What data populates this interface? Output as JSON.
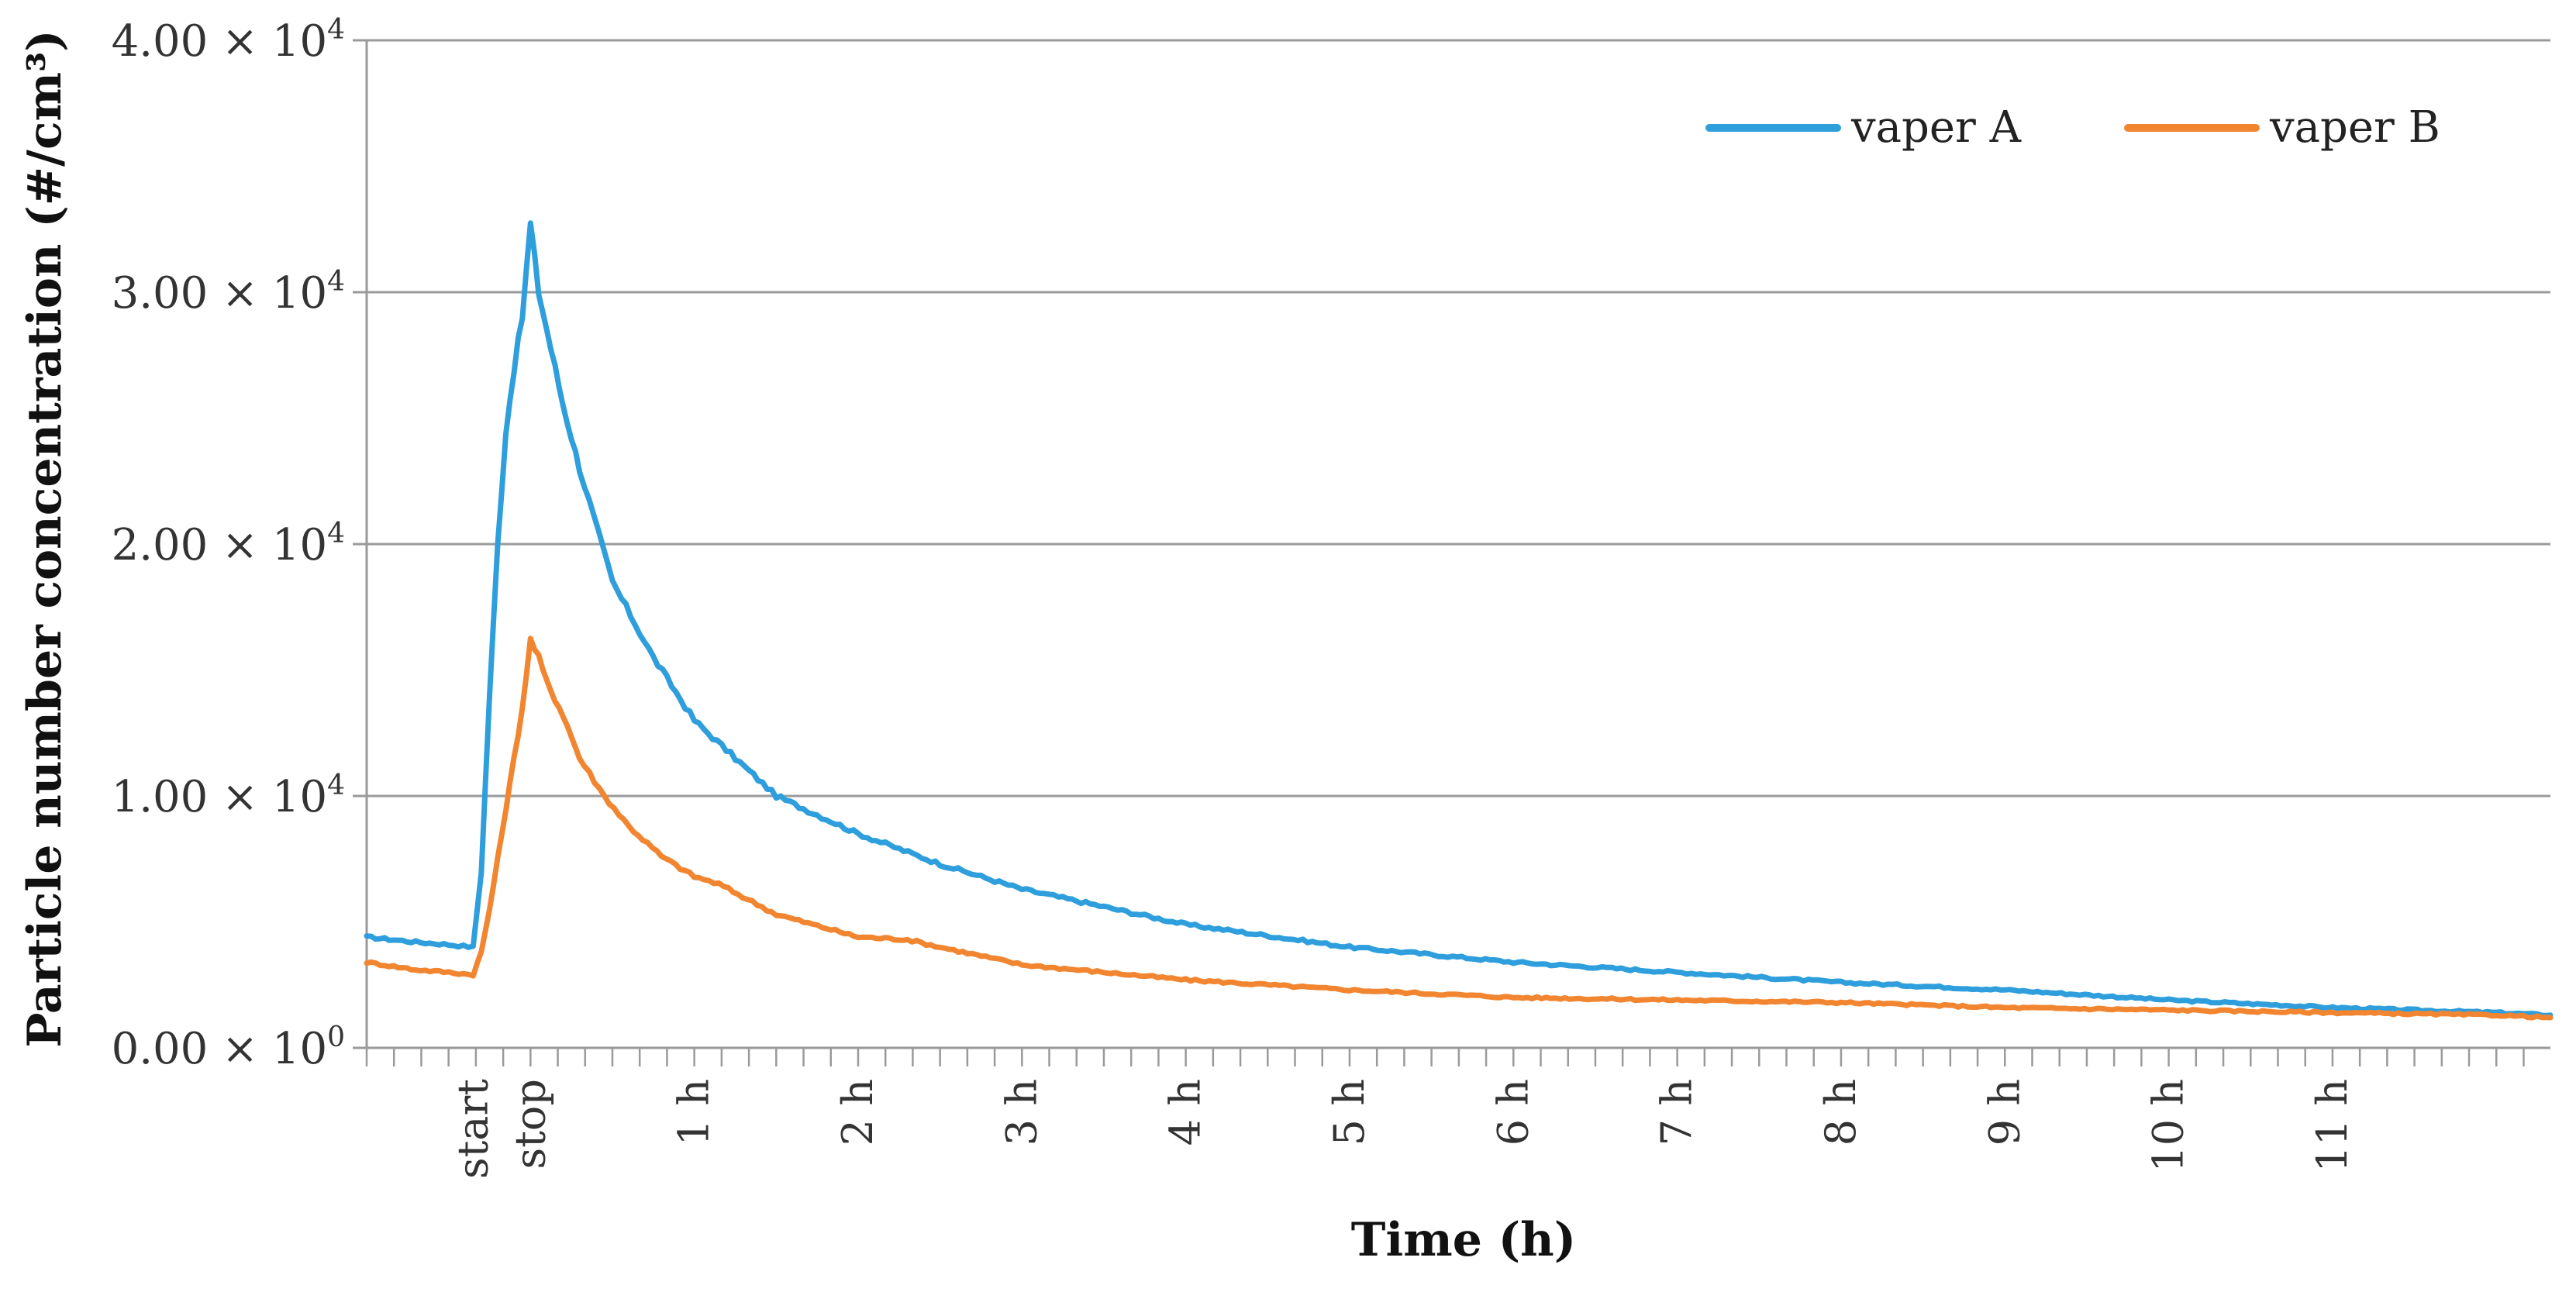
{
  "chart_data": {
    "type": "line",
    "title": "",
    "xlabel": "Time (h)",
    "ylabel": "Particle number concentration (#/cm³)",
    "ylim": [
      0,
      40000
    ],
    "xlim": [
      -1.0,
      12.33
    ],
    "grid": "horizontal",
    "legend_position": "top-right",
    "yticks": [
      {
        "value": 0,
        "mant": "0.00",
        "exp": "0"
      },
      {
        "value": 10000,
        "mant": "1.00",
        "exp": "4"
      },
      {
        "value": 20000,
        "mant": "2.00",
        "exp": "4"
      },
      {
        "value": 30000,
        "mant": "3.00",
        "exp": "4"
      },
      {
        "value": 40000,
        "mant": "4.00",
        "exp": "4"
      }
    ],
    "xticks": [
      {
        "value": -0.35,
        "label": "start"
      },
      {
        "value": 0.0,
        "label": "stop"
      },
      {
        "value": 1,
        "label": "1 h"
      },
      {
        "value": 2,
        "label": "2 h"
      },
      {
        "value": 3,
        "label": "3 h"
      },
      {
        "value": 4,
        "label": "4 h"
      },
      {
        "value": 5,
        "label": "5 h"
      },
      {
        "value": 6,
        "label": "6 h"
      },
      {
        "value": 7,
        "label": "7 h"
      },
      {
        "value": 8,
        "label": "8 h"
      },
      {
        "value": 9,
        "label": "9 h"
      },
      {
        "value": 10,
        "label": "10 h"
      },
      {
        "value": 11,
        "label": "11 h"
      }
    ],
    "series": [
      {
        "name": "vaper A",
        "color": "#2e9fdc",
        "x": [
          -1.0,
          -0.7,
          -0.5,
          -0.35,
          -0.3,
          -0.25,
          -0.2,
          -0.15,
          -0.1,
          -0.05,
          0.0,
          0.05,
          0.1,
          0.15,
          0.2,
          0.3,
          0.5,
          0.75,
          1.0,
          1.25,
          1.5,
          2.0,
          2.5,
          3.0,
          3.5,
          4.0,
          5.0,
          6.0,
          7.0,
          8.0,
          9.0,
          10.0,
          11.0,
          12.0,
          12.33
        ],
        "values": [
          4400,
          4200,
          4100,
          4000,
          7000,
          14000,
          20000,
          24500,
          27000,
          29000,
          32700,
          30000,
          28500,
          27000,
          25500,
          23000,
          18500,
          15500,
          13000,
          11500,
          10000,
          8500,
          7300,
          6300,
          5600,
          4900,
          4000,
          3400,
          3000,
          2600,
          2300,
          1900,
          1600,
          1400,
          1300
        ]
      },
      {
        "name": "vaper B",
        "color": "#f28530",
        "x": [
          -1.0,
          -0.7,
          -0.5,
          -0.35,
          -0.3,
          -0.25,
          -0.2,
          -0.15,
          -0.1,
          -0.05,
          0.0,
          0.05,
          0.1,
          0.2,
          0.3,
          0.45,
          0.6,
          0.8,
          1.0,
          1.15,
          1.5,
          2.0,
          2.3,
          2.5,
          3.0,
          4.0,
          5.0,
          6.0,
          7.0,
          8.0,
          9.0,
          10.0,
          11.0,
          12.0,
          12.33
        ],
        "values": [
          3400,
          3100,
          3000,
          2900,
          3800,
          5500,
          7500,
          9500,
          11500,
          13500,
          16200,
          15500,
          14500,
          13200,
          11500,
          10000,
          8800,
          7600,
          6800,
          6500,
          5300,
          4400,
          4300,
          4000,
          3300,
          2700,
          2300,
          2000,
          1900,
          1800,
          1600,
          1500,
          1400,
          1300,
          1200
        ]
      }
    ]
  }
}
